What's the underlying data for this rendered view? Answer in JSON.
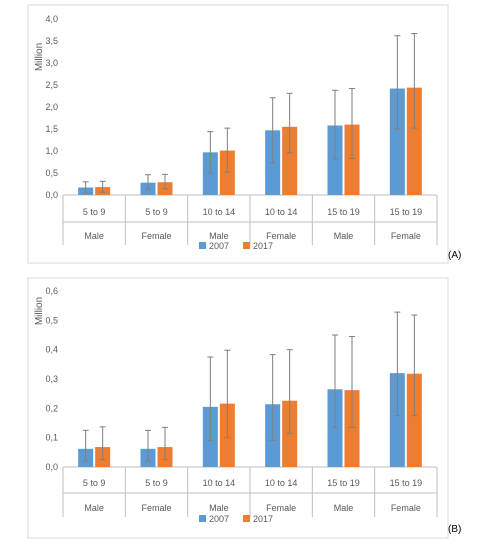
{
  "colors": {
    "series_2007": "#5B9BD5",
    "series_2017": "#ED7D31",
    "error_bar": "#7f7f7f",
    "frame": "#d9d9d9",
    "axis": "#bfbfbf"
  },
  "chart_data": [
    {
      "type": "bar",
      "panel_label": "(A)",
      "ylabel": "Million",
      "ylim": [
        0,
        4.0
      ],
      "yticks": [
        "0,0",
        "0,5",
        "1,0",
        "1,5",
        "2,0",
        "2,5",
        "3,0",
        "3,5",
        "4,0"
      ],
      "categories": [
        "5 to 9",
        "5 to 9",
        "10 to 14",
        "10 to 14",
        "15 to 19",
        "15 to 19"
      ],
      "groups": [
        "Male",
        "Female",
        "Male",
        "Female",
        "Male",
        "Female"
      ],
      "legend": [
        "2007",
        "2017"
      ],
      "legend_position": "bottom",
      "grid": false,
      "series": [
        {
          "name": "2007",
          "values": [
            0.17,
            0.28,
            0.97,
            1.47,
            1.58,
            2.42
          ],
          "err_low": [
            0.05,
            0.13,
            0.5,
            0.73,
            0.82,
            1.5
          ],
          "err_high": [
            0.3,
            0.46,
            1.44,
            2.21,
            2.38,
            3.62
          ]
        },
        {
          "name": "2017",
          "values": [
            0.18,
            0.29,
            1.01,
            1.55,
            1.6,
            2.44
          ],
          "err_low": [
            0.06,
            0.14,
            0.52,
            0.96,
            0.83,
            1.52
          ],
          "err_high": [
            0.31,
            0.47,
            1.52,
            2.31,
            2.42,
            3.67
          ]
        }
      ]
    },
    {
      "type": "bar",
      "panel_label": "(B)",
      "ylabel": "Million",
      "ylim": [
        0,
        0.6
      ],
      "yticks": [
        "0,0",
        "0,1",
        "0,2",
        "0,3",
        "0,4",
        "0,5",
        "0,6"
      ],
      "categories": [
        "5 to 9",
        "5 to 9",
        "10 to 14",
        "10 to 14",
        "15 to 19",
        "15 to 19"
      ],
      "groups": [
        "Male",
        "Female",
        "Male",
        "Female",
        "Male",
        "Female"
      ],
      "legend": [
        "2007",
        "2017"
      ],
      "legend_position": "bottom",
      "grid": false,
      "series": [
        {
          "name": "2007",
          "values": [
            0.062,
            0.062,
            0.205,
            0.214,
            0.265,
            0.32
          ],
          "err_low": [
            0.02,
            0.02,
            0.09,
            0.09,
            0.135,
            0.175
          ],
          "err_high": [
            0.125,
            0.125,
            0.375,
            0.383,
            0.45,
            0.528
          ]
        },
        {
          "name": "2017",
          "values": [
            0.068,
            0.068,
            0.216,
            0.226,
            0.262,
            0.318
          ],
          "err_low": [
            0.025,
            0.025,
            0.1,
            0.115,
            0.135,
            0.175
          ],
          "err_high": [
            0.137,
            0.135,
            0.398,
            0.4,
            0.445,
            0.518
          ]
        }
      ]
    }
  ]
}
